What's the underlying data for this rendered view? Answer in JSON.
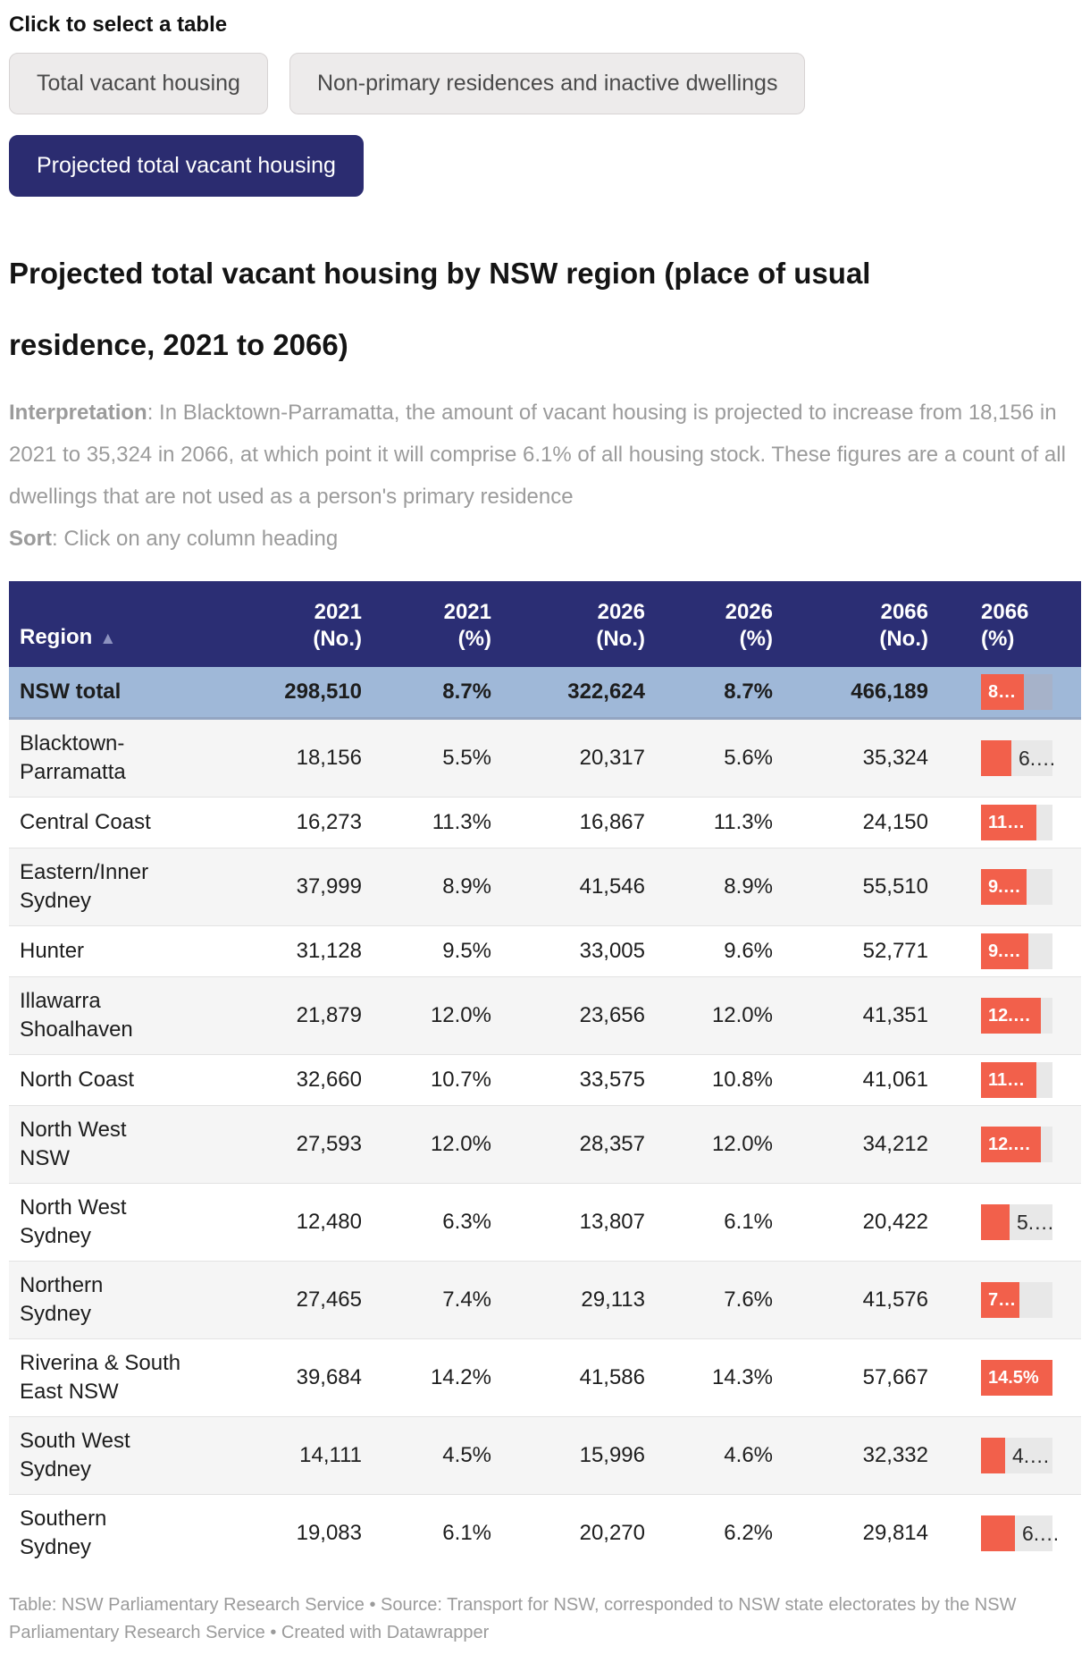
{
  "page": {
    "selector_label": "Click to select a table",
    "buttons": [
      {
        "label": "Total vacant housing",
        "active": false
      },
      {
        "label": "Non-primary residences and inactive dwellings",
        "active": false
      },
      {
        "label": "Projected total vacant housing",
        "active": true
      }
    ],
    "title": "Projected total vacant housing by NSW region (place of usual residence, 2021 to 2066)",
    "interpretation_label": "Interpretation",
    "interpretation_text": ": In Blacktown-Parramatta, the amount of vacant housing is projected to increase from 18,156 in 2021 to 35,324 in 2066, at which point it will comprise 6.1% of all housing stock. These figures are a count of all dwellings that are not used as a person's primary residence",
    "sort_label": "Sort",
    "sort_text": ": Click on any column heading",
    "footer": "Table: NSW Parliamentary Research Service • Source: Transport for NSW, corresponded to NSW state electorates by the NSW Parliamentary Research Service • Created with Datawrapper"
  },
  "colors": {
    "header_navy": "#2b2e74",
    "active_button_navy": "#2b2c70",
    "total_row_blue": "#9fb8d8",
    "bar_orange": "#f2604b",
    "bar_track_gray": "#e8e8e8",
    "bar_track_on_total": "#a6b2c9",
    "note_gray": "#9b9b9b"
  },
  "chart_data": {
    "type": "table",
    "title": "Projected total vacant housing by NSW region (place of usual residence, 2021 to 2066)",
    "columns": [
      "Region",
      "2021 (No.)",
      "2021 (%)",
      "2026 (No.)",
      "2026 (%)",
      "2066 (No.)",
      "2066 (%)"
    ],
    "columns_display": [
      {
        "lines": [
          "Region"
        ],
        "sorted": true
      },
      {
        "lines": [
          "2021",
          "(No.)"
        ]
      },
      {
        "lines": [
          "2021",
          "(%)"
        ]
      },
      {
        "lines": [
          "2026",
          "(No.)"
        ]
      },
      {
        "lines": [
          "2026",
          "(%)"
        ]
      },
      {
        "lines": [
          "2066",
          "(No.)"
        ]
      },
      {
        "lines": [
          "2066",
          "(%)"
        ]
      }
    ],
    "sort": {
      "column": "Region",
      "direction": "ascending",
      "indicator": "▲"
    },
    "bar_axis_max_pct": 14.5,
    "rows": [
      {
        "region": "NSW total",
        "region_lines": [
          "NSW total"
        ],
        "is_total": true,
        "cells": [
          "298,510",
          "8.7%",
          "322,624",
          "8.7%",
          "466,189"
        ],
        "bar": {
          "label": "8…",
          "value_pct": 8.7,
          "label_inside": true
        }
      },
      {
        "region": "Blacktown-Parramatta",
        "region_lines": [
          "Blacktown-",
          "Parramatta"
        ],
        "is_total": false,
        "cells": [
          "18,156",
          "5.5%",
          "20,317",
          "5.6%",
          "35,324"
        ],
        "bar": {
          "label": "6.…",
          "value_pct": 6.1,
          "label_inside": false
        }
      },
      {
        "region": "Central Coast",
        "region_lines": [
          "Central Coast"
        ],
        "is_total": false,
        "cells": [
          "16,273",
          "11.3%",
          "16,867",
          "11.3%",
          "24,150"
        ],
        "bar": {
          "label": "11…",
          "value_pct": 11.3,
          "label_inside": true
        }
      },
      {
        "region": "Eastern/Inner Sydney",
        "region_lines": [
          "Eastern/Inner",
          "Sydney"
        ],
        "is_total": false,
        "cells": [
          "37,999",
          "8.9%",
          "41,546",
          "8.9%",
          "55,510"
        ],
        "bar": {
          "label": "9.…",
          "value_pct": 9.3,
          "label_inside": true
        }
      },
      {
        "region": "Hunter",
        "region_lines": [
          "Hunter"
        ],
        "is_total": false,
        "cells": [
          "31,128",
          "9.5%",
          "33,005",
          "9.6%",
          "52,771"
        ],
        "bar": {
          "label": "9.…",
          "value_pct": 9.6,
          "label_inside": true
        }
      },
      {
        "region": "Illawarra Shoalhaven",
        "region_lines": [
          "Illawarra",
          "Shoalhaven"
        ],
        "is_total": false,
        "cells": [
          "21,879",
          "12.0%",
          "23,656",
          "12.0%",
          "41,351"
        ],
        "bar": {
          "label": "12.…",
          "value_pct": 12.1,
          "label_inside": true
        }
      },
      {
        "region": "North Coast",
        "region_lines": [
          "North Coast"
        ],
        "is_total": false,
        "cells": [
          "32,660",
          "10.7%",
          "33,575",
          "10.8%",
          "41,061"
        ],
        "bar": {
          "label": "11…",
          "value_pct": 11.2,
          "label_inside": true
        }
      },
      {
        "region": "North West NSW",
        "region_lines": [
          "North West",
          "NSW"
        ],
        "is_total": false,
        "cells": [
          "27,593",
          "12.0%",
          "28,357",
          "12.0%",
          "34,212"
        ],
        "bar": {
          "label": "12.…",
          "value_pct": 12.1,
          "label_inside": true
        }
      },
      {
        "region": "North West Sydney",
        "region_lines": [
          "North West",
          "Sydney"
        ],
        "is_total": false,
        "cells": [
          "12,480",
          "6.3%",
          "13,807",
          "6.1%",
          "20,422"
        ],
        "bar": {
          "label": "5.…",
          "value_pct": 5.8,
          "label_inside": false
        }
      },
      {
        "region": "Northern Sydney",
        "region_lines": [
          "Northern",
          "Sydney"
        ],
        "is_total": false,
        "cells": [
          "27,465",
          "7.4%",
          "29,113",
          "7.6%",
          "41,576"
        ],
        "bar": {
          "label": "7…",
          "value_pct": 7.8,
          "label_inside": true
        }
      },
      {
        "region": "Riverina & South East NSW",
        "region_lines": [
          "Riverina & South",
          "East NSW"
        ],
        "is_total": false,
        "cells": [
          "39,684",
          "14.2%",
          "41,586",
          "14.3%",
          "57,667"
        ],
        "bar": {
          "label": "14.5%",
          "value_pct": 14.5,
          "label_inside": true
        }
      },
      {
        "region": "South West Sydney",
        "region_lines": [
          "South West",
          "Sydney"
        ],
        "is_total": false,
        "cells": [
          "14,111",
          "4.5%",
          "15,996",
          "4.6%",
          "32,332"
        ],
        "bar": {
          "label": "4.…",
          "value_pct": 4.9,
          "label_inside": false
        }
      },
      {
        "region": "Southern Sydney",
        "region_lines": [
          "Southern",
          "Sydney"
        ],
        "is_total": false,
        "cells": [
          "19,083",
          "6.1%",
          "20,270",
          "6.2%",
          "29,814"
        ],
        "bar": {
          "label": "6.…",
          "value_pct": 6.8,
          "label_inside": false
        }
      }
    ]
  }
}
